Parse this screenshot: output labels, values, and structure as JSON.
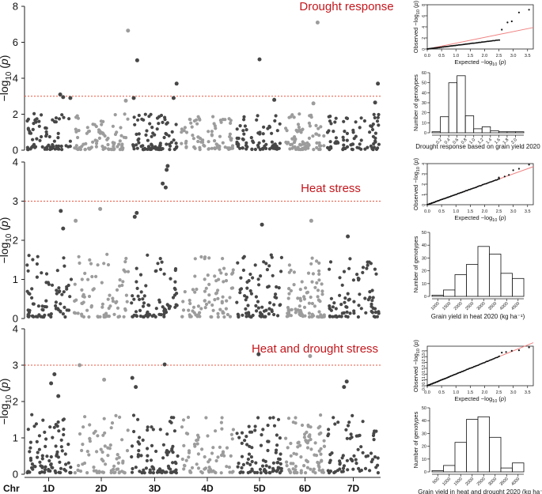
{
  "chart_data": {
    "type": "figure",
    "chromosomes": [
      "1D",
      "2D",
      "3D",
      "4D",
      "5D",
      "6D",
      "7D"
    ],
    "chr_label": "Chr",
    "panels": [
      {
        "id": "drought",
        "title": "Drought response",
        "ylabel": "−log10(p)",
        "ylim": [
          0,
          8
        ],
        "yticks": [
          0,
          2,
          4,
          6,
          8
        ],
        "threshold": 3,
        "peaks": [
          {
            "chr": "1D",
            "pos": 0.74,
            "value": 3.1
          },
          {
            "chr": "1D",
            "pos": 0.8,
            "value": 2.95
          },
          {
            "chr": "1D",
            "pos": 0.95,
            "value": 2.9
          },
          {
            "chr": "2D",
            "pos": 0.93,
            "value": 2.75
          },
          {
            "chr": "2D",
            "pos": 0.97,
            "value": 6.65
          },
          {
            "chr": "3D",
            "pos": 0.08,
            "value": 2.9
          },
          {
            "chr": "3D",
            "pos": 0.15,
            "value": 5.0
          },
          {
            "chr": "3D",
            "pos": 0.88,
            "value": 2.9
          },
          {
            "chr": "3D",
            "pos": 0.94,
            "value": 3.7
          },
          {
            "chr": "5D",
            "pos": 0.5,
            "value": 5.05
          },
          {
            "chr": "5D",
            "pos": 0.8,
            "value": 2.8
          },
          {
            "chr": "6D",
            "pos": 0.8,
            "value": 7.1
          },
          {
            "chr": "6D",
            "pos": 0.7,
            "value": 2.6
          },
          {
            "chr": "7D",
            "pos": 0.95,
            "value": 3.7
          },
          {
            "chr": "7D",
            "pos": 0.9,
            "value": 2.65
          }
        ],
        "base_max": 2.0,
        "qq": {
          "xlabel": "Expected −log10(p)",
          "ylabel": "Observed −log10(p)",
          "xticks": [
            0.0,
            0.5,
            1.0,
            1.5,
            2.0,
            2.5,
            3.0,
            3.5
          ],
          "xtick_labels": [
            "0.0",
            "0.5",
            "1.0",
            "1.5",
            "2.0",
            "2.5",
            "3.0",
            "3.5"
          ],
          "yticks": [
            0,
            2,
            4,
            6,
            8
          ],
          "xlim": [
            0,
            3.7
          ],
          "ylim": [
            0,
            8
          ],
          "tail": [
            [
              2.6,
              3.5
            ],
            [
              2.8,
              4.8
            ],
            [
              2.95,
              5.0
            ],
            [
              3.2,
              6.6
            ],
            [
              3.55,
              7.1
            ]
          ]
        },
        "hist": {
          "xlabel": "Drought response based on grain yield 2020",
          "ylabel": "Number of genotypes",
          "bin_edges": [
            0.1,
            0.2,
            0.3,
            0.4,
            0.5,
            0.6,
            0.7,
            0.8,
            0.9,
            1.0,
            1.1,
            1.2
          ],
          "counts": [
            1,
            16,
            50,
            57,
            17,
            4,
            6,
            2,
            1,
            1,
            1
          ],
          "xtick_labels": [
            "0.2",
            "0.4",
            "0.6",
            "0.8",
            "1.0",
            "1.2",
            "1.4",
            "1.6",
            "1.8",
            "2.0"
          ],
          "yticks": [
            0,
            10,
            20,
            30,
            40,
            50,
            60
          ],
          "ylim": [
            0,
            60
          ]
        }
      },
      {
        "id": "heat",
        "title": "Heat stress",
        "ylabel": "−log10(p)",
        "ylim": [
          0,
          4
        ],
        "yticks": [
          0,
          1,
          2,
          3,
          4
        ],
        "threshold": 3,
        "peaks": [
          {
            "chr": "1D",
            "pos": 0.75,
            "value": 2.75
          },
          {
            "chr": "1D",
            "pos": 0.8,
            "value": 2.3
          },
          {
            "chr": "2D",
            "pos": 0.05,
            "value": 2.5
          },
          {
            "chr": "2D",
            "pos": 0.48,
            "value": 2.8
          },
          {
            "chr": "3D",
            "pos": 0.1,
            "value": 2.6
          },
          {
            "chr": "3D",
            "pos": 0.14,
            "value": 2.7
          },
          {
            "chr": "3D",
            "pos": 0.66,
            "value": 3.45
          },
          {
            "chr": "3D",
            "pos": 0.72,
            "value": 3.35
          },
          {
            "chr": "3D",
            "pos": 0.74,
            "value": 3.8
          },
          {
            "chr": "3D",
            "pos": 0.76,
            "value": 3.9
          },
          {
            "chr": "5D",
            "pos": 0.55,
            "value": 2.4
          },
          {
            "chr": "6D",
            "pos": 0.65,
            "value": 2.5
          },
          {
            "chr": "7D",
            "pos": 0.4,
            "value": 2.1
          }
        ],
        "base_max": 1.6,
        "qq": {
          "xlabel": "Expected −log10(p)",
          "ylabel": "Observed −log10(p)",
          "xticks": [
            0.0,
            0.5,
            1.0,
            1.5,
            2.0,
            2.5,
            3.0,
            3.5
          ],
          "xtick_labels": [
            "0.0",
            "0.5",
            "1.0",
            "1.5",
            "2.0",
            "2.5",
            "3.0",
            "3.5"
          ],
          "yticks": [
            0,
            1,
            2,
            3,
            4
          ],
          "xlim": [
            0,
            3.7
          ],
          "ylim": [
            0,
            4
          ],
          "tail": [
            [
              2.5,
              2.65
            ],
            [
              2.7,
              2.75
            ],
            [
              2.85,
              2.9
            ],
            [
              3.0,
              3.35
            ],
            [
              3.2,
              3.5
            ],
            [
              3.55,
              3.9
            ]
          ]
        },
        "hist": {
          "xlabel": "Grain yield in heat 2020 (kg ha⁻¹)",
          "ylabel": "Number of genotypes",
          "bin_edges": [
            750,
            1250,
            1750,
            2250,
            2750,
            3250,
            3750,
            4250,
            4750
          ],
          "counts": [
            1,
            5,
            17,
            25,
            39,
            33,
            18,
            14
          ],
          "xtick_labels": [
            "1000",
            "1500",
            "2000",
            "2500",
            "3000",
            "3500",
            "4000",
            "4500"
          ],
          "yticks": [
            0,
            10,
            20,
            30,
            40,
            50
          ],
          "ylim": [
            0,
            50
          ]
        }
      },
      {
        "id": "heatdrought",
        "title": "Heat and drought stress",
        "ylabel": "−log10(p)",
        "ylim": [
          0,
          4
        ],
        "yticks": [
          0,
          1,
          2,
          3,
          4
        ],
        "threshold": 3,
        "peaks": [
          {
            "chr": "1D",
            "pos": 0.55,
            "value": 2.5
          },
          {
            "chr": "1D",
            "pos": 0.62,
            "value": 2.75
          },
          {
            "chr": "1D",
            "pos": 0.7,
            "value": 2.15
          },
          {
            "chr": "2D",
            "pos": 0.12,
            "value": 3.0
          },
          {
            "chr": "2D",
            "pos": 0.55,
            "value": 2.6
          },
          {
            "chr": "3D",
            "pos": 0.05,
            "value": 2.65
          },
          {
            "chr": "3D",
            "pos": 0.12,
            "value": 2.4
          },
          {
            "chr": "3D",
            "pos": 0.7,
            "value": 3.02
          },
          {
            "chr": "5D",
            "pos": 0.48,
            "value": 3.3
          },
          {
            "chr": "6D",
            "pos": 0.62,
            "value": 3.25
          },
          {
            "chr": "7D",
            "pos": 0.38,
            "value": 2.55
          },
          {
            "chr": "7D",
            "pos": 0.33,
            "value": 2.4
          }
        ],
        "base_max": 1.6,
        "qq": {
          "xlabel": "Expected −log10(p)",
          "ylabel": "Observed −log10(p)",
          "xticks": [
            0.0,
            0.5,
            1.0,
            1.5,
            2.0,
            2.5,
            3.0,
            3.5
          ],
          "xtick_labels": [
            "0.0",
            "0.5",
            "1.0",
            "1.5",
            "2.0",
            "2.5",
            "3.0",
            "3.5"
          ],
          "yticks": [
            0,
            0.5,
            1.0,
            1.5,
            2.0,
            2.5,
            3.0
          ],
          "ytick_labels": [
            "0.0",
            "0.5",
            "1.0",
            "1.5",
            "2.0",
            "2.5",
            "3.0"
          ],
          "xlim": [
            0,
            3.7
          ],
          "ylim": [
            0,
            3.4
          ],
          "tail": [
            [
              2.6,
              2.85
            ],
            [
              2.75,
              2.9
            ],
            [
              2.95,
              3.0
            ],
            [
              3.2,
              3.05
            ],
            [
              3.55,
              3.3
            ]
          ]
        },
        "hist": {
          "xlabel": "Grain yield in heat and drought 2020 (kg ha⁻¹)",
          "ylabel": "Number of genotypes",
          "bin_edges": [
            250,
            750,
            1250,
            1750,
            2250,
            2750,
            3250,
            3750,
            4250
          ],
          "counts": [
            1,
            5,
            23,
            41,
            43,
            27,
            3,
            7
          ],
          "xtick_labels": [
            "500",
            "1000",
            "1500",
            "2000",
            "2500",
            "3000",
            "3500",
            "4000"
          ],
          "yticks": [
            0,
            10,
            20,
            30,
            40,
            50
          ],
          "ylim": [
            0,
            50
          ]
        }
      }
    ]
  },
  "colors": {
    "dark": "#474747",
    "light": "#9c9c9c",
    "threshold": "#e8553f",
    "title": "#c4161c",
    "expected_line": "#f08080",
    "qq_points": "#111111",
    "axis": "#222222"
  }
}
